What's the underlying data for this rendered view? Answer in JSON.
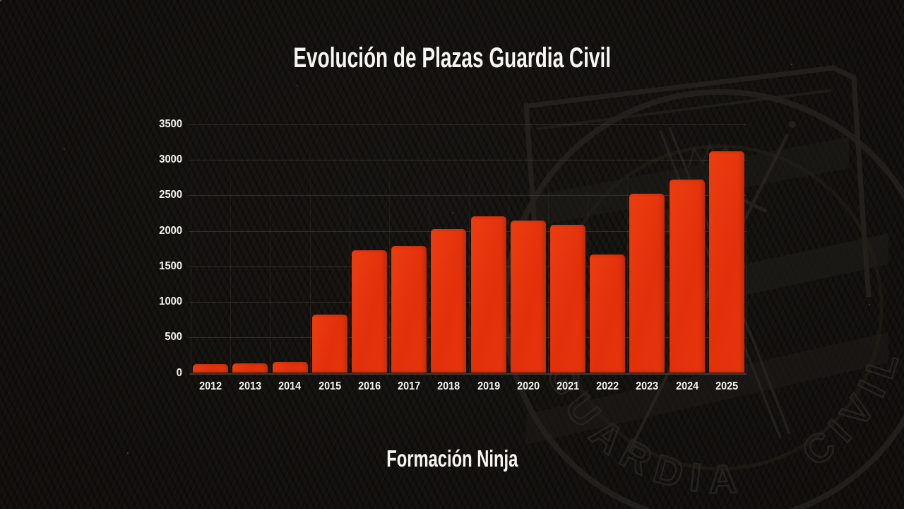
{
  "title": "Evolución de Plazas Guardia Civil",
  "brand": {
    "logo_text": "Formación Ninja"
  },
  "watermark": {
    "arc_text_left": "GUARDIA",
    "arc_text_right": "CIVIL"
  },
  "colors": {
    "background": "#14120f",
    "bar": "#e5340d",
    "text": "#f7f5f1",
    "gridline": "#4a453d",
    "watermark_line": "#272420"
  },
  "chart_data": {
    "type": "bar",
    "title": "Evolución de Plazas Guardia Civil",
    "categories": [
      "2012",
      "2013",
      "2014",
      "2015",
      "2016",
      "2017",
      "2018",
      "2019",
      "2020",
      "2021",
      "2022",
      "2023",
      "2024",
      "2025"
    ],
    "values": [
      120,
      135,
      155,
      820,
      1730,
      1790,
      2030,
      2210,
      2150,
      2090,
      1670,
      2520,
      2720,
      3120
    ],
    "xlabel": "",
    "ylabel": "",
    "ylim": [
      0,
      3500
    ],
    "yticks": [
      0,
      500,
      1000,
      1500,
      2000,
      2500,
      3000,
      3500
    ],
    "grid": "horizontal",
    "legend": "none",
    "bar_color": "#e5340d"
  }
}
